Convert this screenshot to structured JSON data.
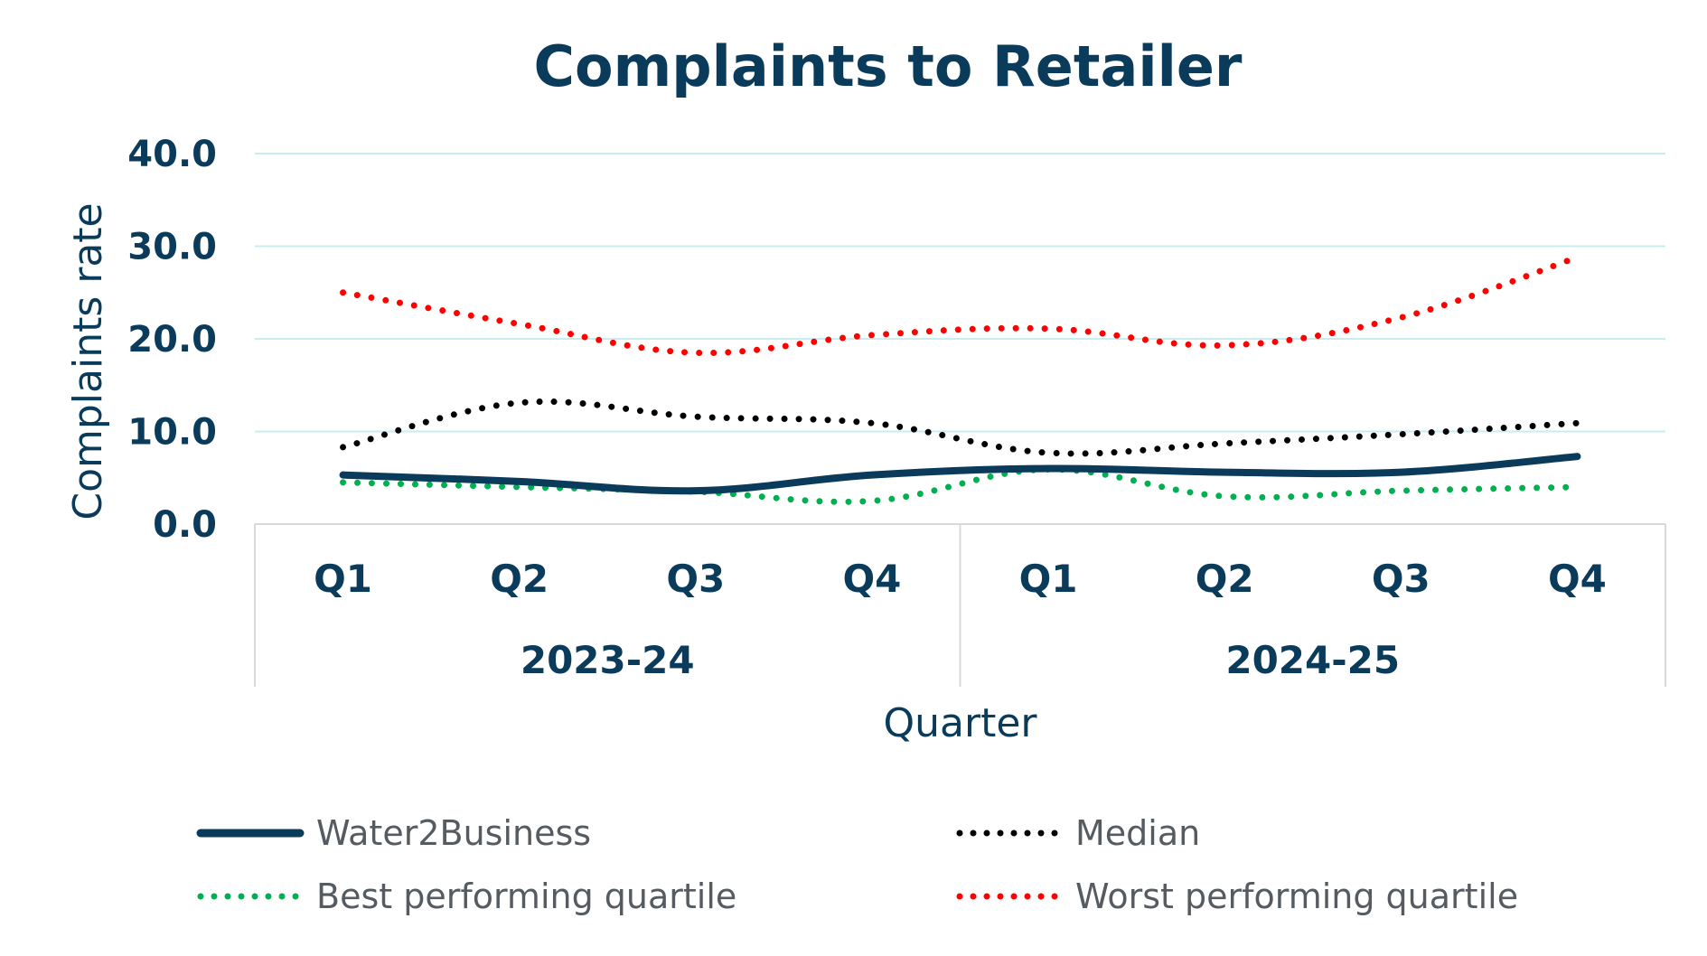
{
  "chart_data": {
    "type": "line",
    "title": "Complaints to Retailer",
    "xlabel": "Quarter",
    "ylabel": "Complaints rate",
    "ylim": [
      0,
      40
    ],
    "yticks": [
      "40.0",
      "30.0",
      "20.0",
      "10.0",
      "0.0"
    ],
    "categories": [
      "Q1",
      "Q2",
      "Q3",
      "Q4",
      "Q1",
      "Q2",
      "Q3",
      "Q4"
    ],
    "groups": [
      {
        "label": "2023-24",
        "start": 0,
        "end": 3
      },
      {
        "label": "2024-25",
        "start": 4,
        "end": 7
      }
    ],
    "grid": true,
    "legend_position": "bottom",
    "series": [
      {
        "name": "Water2Business",
        "values": [
          5.3,
          4.6,
          3.6,
          5.3,
          6.0,
          5.6,
          5.6,
          7.3
        ],
        "color": "#0b3b5a",
        "style": "solid"
      },
      {
        "name": "Median",
        "values": [
          8.3,
          13.1,
          11.6,
          10.9,
          7.7,
          8.7,
          9.7,
          10.9
        ],
        "color": "#000000",
        "style": "dotted"
      },
      {
        "name": "Best performing quartile",
        "values": [
          4.5,
          4.0,
          3.5,
          2.5,
          5.9,
          3.0,
          3.6,
          4.0
        ],
        "color": "#00b050",
        "style": "dotted"
      },
      {
        "name": "Worst performing quartile",
        "values": [
          25.0,
          21.6,
          18.5,
          20.4,
          21.1,
          19.3,
          22.3,
          28.8
        ],
        "color": "#ff0000",
        "style": "dotted"
      }
    ]
  },
  "colors": {
    "text": "#0b3b5a",
    "gridline": "#c8ecf0",
    "axis": "#d9d9d9",
    "legend_text": "#555b61"
  }
}
